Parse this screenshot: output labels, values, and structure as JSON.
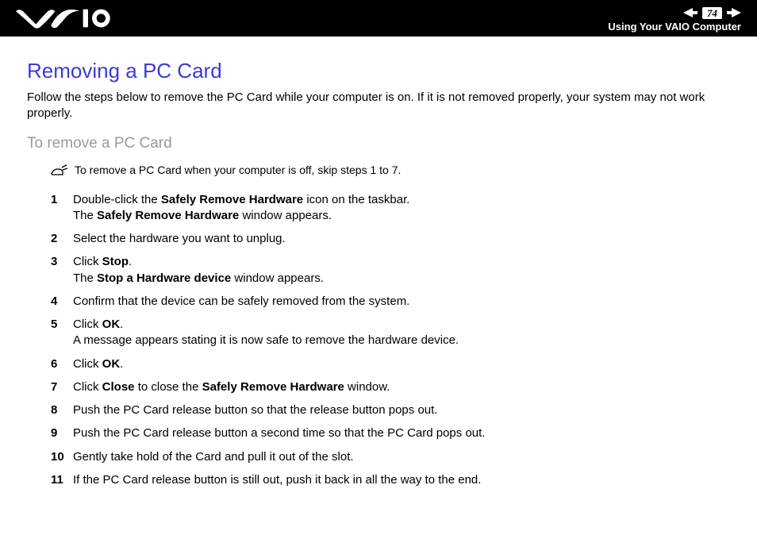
{
  "header": {
    "page_number": "74",
    "section_label": "Using Your VAIO Computer",
    "logo_fill": "#ffffff",
    "nav_arrow_fill": "#ffffff",
    "page_box_bg": "#ffffff",
    "page_box_text": "#000000"
  },
  "colors": {
    "heading_color": "#3b3bd6",
    "subhead_color": "#9a9a9a",
    "body_text": "#000000",
    "background": "#ffffff",
    "header_bg": "#000000"
  },
  "main": {
    "heading": "Removing a PC Card",
    "intro": "Follow the steps below to remove the PC Card while your computer is on. If it is not removed properly, your system may not work properly.",
    "subhead": "To remove a PC Card",
    "note": "To remove a PC Card when your computer is off, skip steps 1 to 7.",
    "steps": [
      {
        "segments": [
          {
            "t": "Double-click the "
          },
          {
            "t": "Safely Remove Hardware",
            "b": true
          },
          {
            "t": " icon on the taskbar."
          },
          {
            "br": true
          },
          {
            "t": "The "
          },
          {
            "t": "Safely Remove Hardware",
            "b": true
          },
          {
            "t": " window appears."
          }
        ]
      },
      {
        "segments": [
          {
            "t": "Select the hardware you want to unplug."
          }
        ]
      },
      {
        "segments": [
          {
            "t": "Click "
          },
          {
            "t": "Stop",
            "b": true
          },
          {
            "t": "."
          },
          {
            "br": true
          },
          {
            "t": "The "
          },
          {
            "t": "Stop a Hardware device",
            "b": true
          },
          {
            "t": " window appears."
          }
        ]
      },
      {
        "segments": [
          {
            "t": "Confirm that the device can be safely removed from the system."
          }
        ]
      },
      {
        "segments": [
          {
            "t": "Click "
          },
          {
            "t": "OK",
            "b": true
          },
          {
            "t": "."
          },
          {
            "br": true
          },
          {
            "t": "A message appears stating it is now safe to remove the hardware device."
          }
        ]
      },
      {
        "segments": [
          {
            "t": "Click "
          },
          {
            "t": "OK",
            "b": true
          },
          {
            "t": "."
          }
        ]
      },
      {
        "segments": [
          {
            "t": "Click "
          },
          {
            "t": "Close",
            "b": true
          },
          {
            "t": " to close the "
          },
          {
            "t": "Safely Remove Hardware",
            "b": true
          },
          {
            "t": " window."
          }
        ]
      },
      {
        "segments": [
          {
            "t": "Push the PC Card release button so that the release button pops out."
          }
        ]
      },
      {
        "segments": [
          {
            "t": "Push the PC Card release button a second time so that the PC Card pops out."
          }
        ]
      },
      {
        "segments": [
          {
            "t": "Gently take hold of the Card and pull it out of the slot."
          }
        ]
      },
      {
        "segments": [
          {
            "t": "If the PC Card release button is still out, push it back in all the way to the end."
          }
        ]
      }
    ]
  }
}
